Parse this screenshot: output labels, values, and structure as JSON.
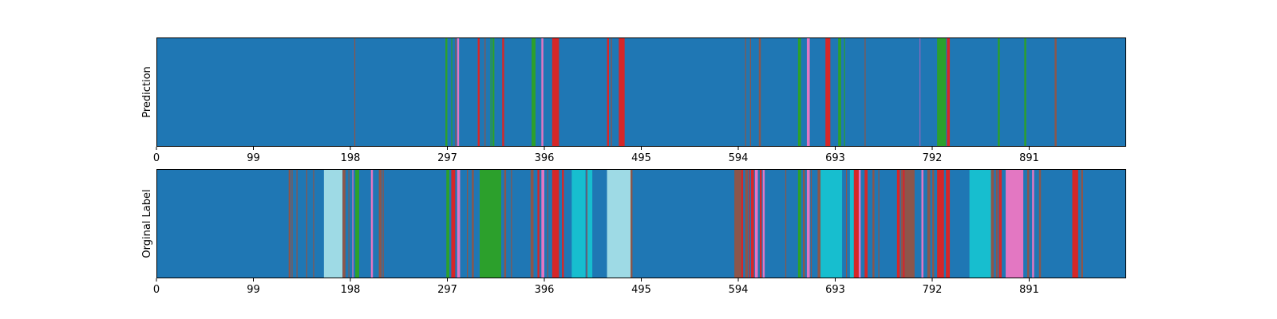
{
  "chart_data": [
    {
      "type": "heatmap",
      "ylabel": "Prediction",
      "xlim": [
        0,
        990
      ],
      "x_ticks": [
        0,
        99,
        198,
        297,
        396,
        495,
        594,
        693,
        792,
        891
      ],
      "background_class": "blue",
      "segments": [
        {
          "start": 202,
          "end": 203,
          "class": "brown"
        },
        {
          "start": 295,
          "end": 297,
          "class": "green"
        },
        {
          "start": 301,
          "end": 302,
          "class": "green"
        },
        {
          "start": 305,
          "end": 306,
          "class": "brown"
        },
        {
          "start": 307,
          "end": 309,
          "class": "pink"
        },
        {
          "start": 328,
          "end": 330,
          "class": "red"
        },
        {
          "start": 335,
          "end": 336,
          "class": "brown"
        },
        {
          "start": 341,
          "end": 342,
          "class": "green"
        },
        {
          "start": 343,
          "end": 345,
          "class": "green"
        },
        {
          "start": 353,
          "end": 355,
          "class": "red"
        },
        {
          "start": 383,
          "end": 387,
          "class": "green"
        },
        {
          "start": 393,
          "end": 395,
          "class": "pink"
        },
        {
          "start": 404,
          "end": 411,
          "class": "red"
        },
        {
          "start": 460,
          "end": 462,
          "class": "red"
        },
        {
          "start": 464,
          "end": 465,
          "class": "brown"
        },
        {
          "start": 472,
          "end": 478,
          "class": "red"
        },
        {
          "start": 601,
          "end": 602,
          "class": "brown"
        },
        {
          "start": 606,
          "end": 607,
          "class": "brown"
        },
        {
          "start": 615,
          "end": 617,
          "class": "brown"
        },
        {
          "start": 655,
          "end": 658,
          "class": "green"
        },
        {
          "start": 664,
          "end": 667,
          "class": "pink"
        },
        {
          "start": 683,
          "end": 688,
          "class": "red"
        },
        {
          "start": 696,
          "end": 699,
          "class": "green"
        },
        {
          "start": 702,
          "end": 703,
          "class": "green"
        },
        {
          "start": 723,
          "end": 724,
          "class": "brown"
        },
        {
          "start": 779,
          "end": 780,
          "class": "purple"
        },
        {
          "start": 797,
          "end": 806,
          "class": "green"
        },
        {
          "start": 807,
          "end": 810,
          "class": "red"
        },
        {
          "start": 859,
          "end": 861,
          "class": "green"
        },
        {
          "start": 886,
          "end": 888,
          "class": "green"
        },
        {
          "start": 917,
          "end": 919,
          "class": "brown"
        }
      ]
    },
    {
      "type": "heatmap",
      "ylabel": "Orginal Label",
      "xlim": [
        0,
        990
      ],
      "x_ticks": [
        0,
        99,
        198,
        297,
        396,
        495,
        594,
        693,
        792,
        891
      ],
      "background_class": "blue",
      "segments": [
        {
          "start": 135,
          "end": 137,
          "class": "brown"
        },
        {
          "start": 138,
          "end": 139,
          "class": "brown"
        },
        {
          "start": 143,
          "end": 144,
          "class": "brown"
        },
        {
          "start": 153,
          "end": 154,
          "class": "brown"
        },
        {
          "start": 160,
          "end": 161,
          "class": "brown"
        },
        {
          "start": 171,
          "end": 190,
          "class": "lightcyan"
        },
        {
          "start": 190,
          "end": 193,
          "class": "brown"
        },
        {
          "start": 196,
          "end": 197,
          "class": "brown"
        },
        {
          "start": 200,
          "end": 201,
          "class": "pink"
        },
        {
          "start": 203,
          "end": 207,
          "class": "green"
        },
        {
          "start": 219,
          "end": 221,
          "class": "pink"
        },
        {
          "start": 227,
          "end": 230,
          "class": "brown"
        },
        {
          "start": 231,
          "end": 232,
          "class": "brown"
        },
        {
          "start": 296,
          "end": 299,
          "class": "green"
        },
        {
          "start": 301,
          "end": 305,
          "class": "red"
        },
        {
          "start": 307,
          "end": 310,
          "class": "pink"
        },
        {
          "start": 317,
          "end": 318,
          "class": "brown"
        },
        {
          "start": 322,
          "end": 324,
          "class": "brown"
        },
        {
          "start": 330,
          "end": 352,
          "class": "green"
        },
        {
          "start": 355,
          "end": 357,
          "class": "brown"
        },
        {
          "start": 362,
          "end": 363,
          "class": "brown"
        },
        {
          "start": 382,
          "end": 385,
          "class": "brown"
        },
        {
          "start": 389,
          "end": 391,
          "class": "red"
        },
        {
          "start": 393,
          "end": 396,
          "class": "pink"
        },
        {
          "start": 399,
          "end": 400,
          "class": "brown"
        },
        {
          "start": 404,
          "end": 411,
          "class": "red"
        },
        {
          "start": 414,
          "end": 416,
          "class": "red"
        },
        {
          "start": 424,
          "end": 438,
          "class": "cyan"
        },
        {
          "start": 439,
          "end": 440,
          "class": "brown"
        },
        {
          "start": 440,
          "end": 445,
          "class": "cyan"
        },
        {
          "start": 460,
          "end": 484,
          "class": "lightcyan"
        },
        {
          "start": 484,
          "end": 486,
          "class": "brown"
        },
        {
          "start": 590,
          "end": 597,
          "class": "brown"
        },
        {
          "start": 597,
          "end": 599,
          "class": "red"
        },
        {
          "start": 601,
          "end": 604,
          "class": "brown"
        },
        {
          "start": 605,
          "end": 606,
          "class": "red"
        },
        {
          "start": 607,
          "end": 610,
          "class": "red"
        },
        {
          "start": 611,
          "end": 614,
          "class": "pink"
        },
        {
          "start": 616,
          "end": 618,
          "class": "red"
        },
        {
          "start": 619,
          "end": 621,
          "class": "pink"
        },
        {
          "start": 642,
          "end": 643,
          "class": "brown"
        },
        {
          "start": 655,
          "end": 658,
          "class": "green"
        },
        {
          "start": 660,
          "end": 662,
          "class": "brown"
        },
        {
          "start": 664,
          "end": 667,
          "class": "pink"
        },
        {
          "start": 668,
          "end": 669,
          "class": "brown"
        },
        {
          "start": 675,
          "end": 678,
          "class": "brown"
        },
        {
          "start": 678,
          "end": 700,
          "class": "cyan"
        },
        {
          "start": 704,
          "end": 705,
          "class": "brown"
        },
        {
          "start": 708,
          "end": 712,
          "class": "cyan"
        },
        {
          "start": 712,
          "end": 717,
          "class": "red"
        },
        {
          "start": 717,
          "end": 719,
          "class": "pink"
        },
        {
          "start": 723,
          "end": 726,
          "class": "red"
        },
        {
          "start": 731,
          "end": 733,
          "class": "brown"
        },
        {
          "start": 737,
          "end": 738,
          "class": "brown"
        },
        {
          "start": 756,
          "end": 759,
          "class": "red"
        },
        {
          "start": 760,
          "end": 762,
          "class": "brown"
        },
        {
          "start": 762,
          "end": 764,
          "class": "red"
        },
        {
          "start": 764,
          "end": 774,
          "class": "brown"
        },
        {
          "start": 781,
          "end": 783,
          "class": "pink"
        },
        {
          "start": 787,
          "end": 790,
          "class": "brown"
        },
        {
          "start": 792,
          "end": 794,
          "class": "brown"
        },
        {
          "start": 797,
          "end": 804,
          "class": "red"
        },
        {
          "start": 806,
          "end": 810,
          "class": "red"
        },
        {
          "start": 830,
          "end": 852,
          "class": "cyan"
        },
        {
          "start": 852,
          "end": 855,
          "class": "brown"
        },
        {
          "start": 857,
          "end": 859,
          "class": "brown"
        },
        {
          "start": 860,
          "end": 863,
          "class": "red"
        },
        {
          "start": 867,
          "end": 885,
          "class": "pink"
        },
        {
          "start": 889,
          "end": 891,
          "class": "brown"
        },
        {
          "start": 894,
          "end": 896,
          "class": "pink"
        },
        {
          "start": 901,
          "end": 903,
          "class": "brown"
        },
        {
          "start": 935,
          "end": 941,
          "class": "red"
        },
        {
          "start": 944,
          "end": 946,
          "class": "brown"
        }
      ]
    }
  ],
  "colors": {
    "blue": "#1f77b4",
    "green": "#2ca02c",
    "red": "#d62728",
    "brown": "#8c564b",
    "pink": "#e377c2",
    "purple": "#9467bd",
    "cyan": "#17becf",
    "lightcyan": "#9edae5"
  }
}
